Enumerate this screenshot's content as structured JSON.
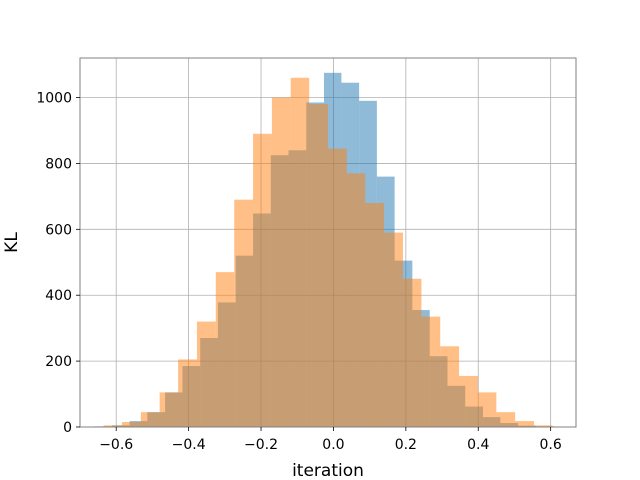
{
  "chart_data": {
    "type": "histogram",
    "xlabel": "iteration",
    "ylabel": "KL",
    "xlim": [
      -0.7,
      0.67
    ],
    "ylim": [
      0,
      1120
    ],
    "grid": true,
    "x_ticks": [
      -0.6,
      -0.4,
      -0.2,
      0.0,
      0.2,
      0.4,
      0.6
    ],
    "x_tick_labels": [
      "−0.6",
      "−0.4",
      "−0.2",
      "0.0",
      "0.2",
      "0.4",
      "0.6"
    ],
    "y_ticks": [
      0,
      200,
      400,
      600,
      800,
      1000
    ],
    "y_tick_labels": [
      "0",
      "200",
      "400",
      "600",
      "800",
      "1000"
    ],
    "series": [
      {
        "color": "#1f77b4",
        "alpha": 0.5,
        "bins": [
          [
            -0.66,
            -0.612,
            2
          ],
          [
            -0.612,
            -0.563,
            5
          ],
          [
            -0.563,
            -0.514,
            18
          ],
          [
            -0.514,
            -0.465,
            45
          ],
          [
            -0.465,
            -0.417,
            105
          ],
          [
            -0.417,
            -0.368,
            185
          ],
          [
            -0.368,
            -0.319,
            270
          ],
          [
            -0.319,
            -0.27,
            378
          ],
          [
            -0.27,
            -0.222,
            520
          ],
          [
            -0.222,
            -0.173,
            648
          ],
          [
            -0.173,
            -0.124,
            825
          ],
          [
            -0.124,
            -0.075,
            840
          ],
          [
            -0.075,
            -0.026,
            985
          ],
          [
            -0.026,
            0.022,
            1075
          ],
          [
            0.022,
            0.071,
            1045
          ],
          [
            0.071,
            0.12,
            990
          ],
          [
            0.12,
            0.169,
            760
          ],
          [
            0.169,
            0.218,
            505
          ],
          [
            0.218,
            0.266,
            355
          ],
          [
            0.266,
            0.315,
            215
          ],
          [
            0.315,
            0.364,
            125
          ],
          [
            0.364,
            0.413,
            62
          ],
          [
            0.413,
            0.461,
            30
          ],
          [
            0.461,
            0.51,
            12
          ],
          [
            0.51,
            0.559,
            4
          ],
          [
            0.559,
            0.61,
            2
          ]
        ]
      },
      {
        "color": "#ff7f0e",
        "alpha": 0.5,
        "bins": [
          [
            -0.635,
            -0.584,
            5
          ],
          [
            -0.584,
            -0.532,
            15
          ],
          [
            -0.532,
            -0.48,
            45
          ],
          [
            -0.48,
            -0.429,
            105
          ],
          [
            -0.429,
            -0.377,
            205
          ],
          [
            -0.377,
            -0.325,
            320
          ],
          [
            -0.325,
            -0.274,
            470
          ],
          [
            -0.274,
            -0.222,
            690
          ],
          [
            -0.222,
            -0.17,
            890
          ],
          [
            -0.17,
            -0.118,
            1000
          ],
          [
            -0.118,
            -0.067,
            1060
          ],
          [
            -0.067,
            -0.015,
            980
          ],
          [
            -0.015,
            0.037,
            845
          ],
          [
            0.037,
            0.088,
            770
          ],
          [
            0.088,
            0.14,
            680
          ],
          [
            0.14,
            0.192,
            590
          ],
          [
            0.192,
            0.243,
            450
          ],
          [
            0.243,
            0.295,
            335
          ],
          [
            0.295,
            0.347,
            245
          ],
          [
            0.347,
            0.399,
            155
          ],
          [
            0.399,
            0.45,
            105
          ],
          [
            0.45,
            0.502,
            45
          ],
          [
            0.502,
            0.554,
            18
          ],
          [
            0.554,
            0.605,
            5
          ]
        ]
      }
    ]
  }
}
